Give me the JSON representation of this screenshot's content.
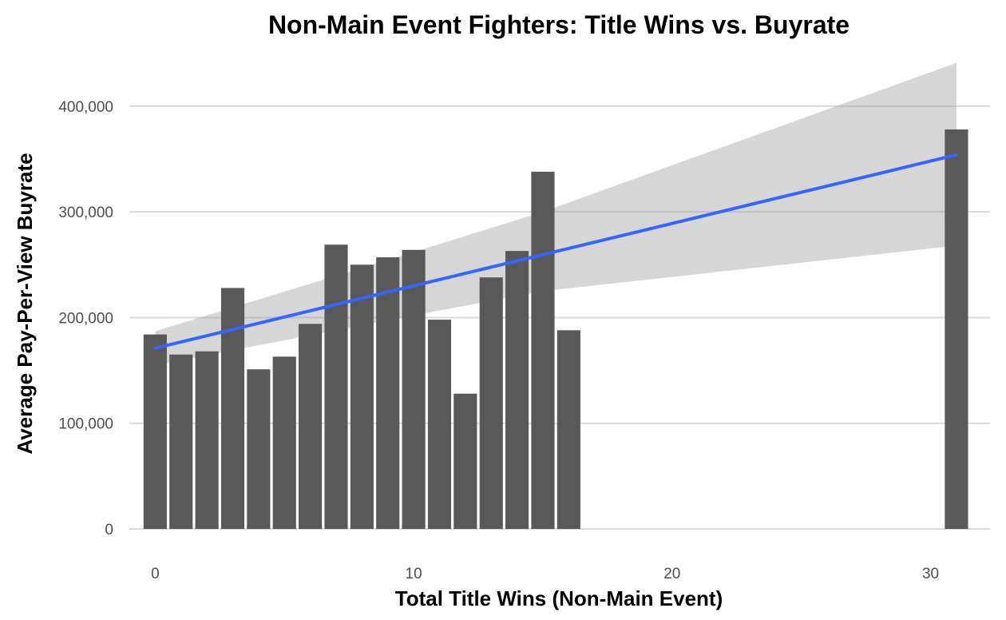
{
  "chart_data": {
    "type": "bar",
    "title": "Non-Main Event Fighters: Title Wins vs. Buyrate",
    "xlabel": "Total Title Wins (Non-Main Event)",
    "ylabel": "Average Pay-Per-View Buyrate",
    "xlim": [
      -1.0,
      32.3
    ],
    "ylim": [
      0,
      440000
    ],
    "x_ticks": [
      0,
      10,
      20,
      30
    ],
    "x_tick_labels": [
      "0",
      "10",
      "20",
      "30"
    ],
    "y_ticks": [
      0,
      100000,
      200000,
      300000,
      400000
    ],
    "y_tick_labels": [
      "0",
      "100,000",
      "200,000",
      "300,000",
      "400,000"
    ],
    "grid": "horizontal",
    "legend": "none",
    "bars": {
      "x": [
        0,
        1,
        2,
        3,
        4,
        5,
        6,
        7,
        8,
        9,
        10,
        11,
        12,
        13,
        14,
        15,
        16,
        31
      ],
      "values": [
        184000,
        165000,
        168000,
        228000,
        151000,
        163000,
        194000,
        269000,
        250000,
        257000,
        264000,
        198000,
        128000,
        238000,
        263000,
        338000,
        188000,
        378000
      ],
      "color": "#595959"
    },
    "trend_line": {
      "method": "linear",
      "x": [
        0,
        31
      ],
      "y": [
        171000,
        354000
      ],
      "color": "#3366ff"
    },
    "confidence_band": {
      "x": [
        0,
        10,
        15,
        31
      ],
      "lower": [
        155000,
        202000,
        225000,
        268000
      ],
      "upper": [
        187000,
        262000,
        300000,
        441000
      ],
      "color": "#999999"
    }
  }
}
